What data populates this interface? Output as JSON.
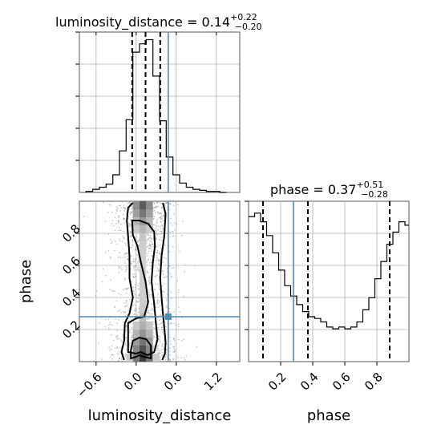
{
  "colors": {
    "truth": "#4c8cb5",
    "hist": "#000000",
    "contour": "#000000",
    "grid": "#b0b0b0",
    "scatter": "#9a9a9a"
  },
  "chart_data": {
    "type": "corner",
    "parameters": [
      "luminosity_distance",
      "phase"
    ],
    "titles": {
      "luminosity_distance": {
        "prefix": "luminosity_distance = ",
        "median": "0.14",
        "upper": "+0.22",
        "lower": "−0.20"
      },
      "phase": {
        "prefix": "phase = ",
        "median": "0.37",
        "upper": "+0.51",
        "lower": "−0.28"
      }
    },
    "axes": {
      "luminosity_distance": {
        "label": "luminosity_distance",
        "range": [
          -0.85,
          1.55
        ],
        "ticks": [
          -0.6,
          0.0,
          0.6,
          1.2
        ],
        "tick_labels": [
          "−0.6",
          "0.0",
          "0.6",
          "1.2"
        ]
      },
      "phase": {
        "label": "phase",
        "range": [
          0.0,
          1.0
        ],
        "ticks": [
          0.2,
          0.4,
          0.6,
          0.8
        ],
        "tick_labels": [
          "0.2",
          "0.4",
          "0.6",
          "0.8"
        ]
      }
    },
    "truths": {
      "luminosity_distance": 0.48,
      "phase": 0.28
    },
    "quantiles": {
      "luminosity_distance": [
        -0.06,
        0.14,
        0.36
      ],
      "phase": [
        0.09,
        0.37,
        0.88
      ]
    },
    "hist_luminosity_distance": {
      "edges": [
        -0.75,
        -0.65,
        -0.55,
        -0.45,
        -0.35,
        -0.25,
        -0.15,
        -0.05,
        0.05,
        0.15,
        0.25,
        0.35,
        0.45,
        0.55,
        0.65,
        0.75,
        0.85,
        0.95,
        1.05,
        1.15,
        1.25,
        1.35
      ],
      "counts": [
        1,
        3,
        5,
        8,
        17,
        40,
        70,
        135,
        143,
        147,
        112,
        69,
        34,
        17,
        9,
        5,
        3,
        2,
        1,
        1,
        0
      ]
    },
    "hist_phase": {
      "edges": [
        0.0,
        0.0375,
        0.075,
        0.1125,
        0.15,
        0.1875,
        0.225,
        0.2625,
        0.3,
        0.3375,
        0.375,
        0.4125,
        0.45,
        0.4875,
        0.525,
        0.5625,
        0.6,
        0.6375,
        0.675,
        0.7125,
        0.75,
        0.7875,
        0.825,
        0.8625,
        0.9,
        0.9375,
        0.975,
        1.0
      ],
      "counts": [
        84,
        86,
        81,
        73,
        63,
        53,
        44,
        38,
        33,
        29,
        26,
        25,
        23,
        20,
        19,
        20,
        19,
        20,
        23,
        30,
        37,
        48,
        58,
        68,
        75,
        81,
        79
      ]
    },
    "contours_2d": [
      {
        "level": "inner",
        "points": [
          [
            -0.08,
            0.02
          ],
          [
            -0.08,
            0.07
          ],
          [
            -0.05,
            0.13
          ],
          [
            0.05,
            0.15
          ],
          [
            0.15,
            0.14
          ],
          [
            0.22,
            0.1
          ],
          [
            0.22,
            0.02
          ],
          [
            0.12,
            0.03
          ],
          [
            0.05,
            0.04
          ],
          [
            0.0,
            0.03
          ]
        ]
      },
      {
        "level": "middle",
        "points": [
          [
            -0.12,
            0.06
          ],
          [
            -0.12,
            0.15
          ],
          [
            -0.12,
            0.24
          ],
          [
            0.0,
            0.27
          ],
          [
            0.12,
            0.28
          ],
          [
            0.18,
            0.37
          ],
          [
            0.14,
            0.5
          ],
          [
            0.07,
            0.62
          ],
          [
            0.02,
            0.72
          ],
          [
            -0.05,
            0.79
          ],
          [
            -0.06,
            0.88
          ],
          [
            0.05,
            0.88
          ],
          [
            0.18,
            0.86
          ],
          [
            0.27,
            0.81
          ],
          [
            0.28,
            0.72
          ],
          [
            0.25,
            0.62
          ],
          [
            0.23,
            0.5
          ],
          [
            0.27,
            0.36
          ],
          [
            0.3,
            0.22
          ],
          [
            0.32,
            0.14
          ],
          [
            0.27,
            0.06
          ],
          [
            0.17,
            0.04
          ],
          [
            0.07,
            0.06
          ],
          [
            0.0,
            0.05
          ]
        ]
      },
      {
        "level": "outer",
        "points": [
          [
            -0.18,
            0.01
          ],
          [
            -0.22,
            0.06
          ],
          [
            -0.18,
            0.13
          ],
          [
            -0.17,
            0.24
          ],
          [
            -0.1,
            0.3
          ],
          [
            -0.05,
            0.4
          ],
          [
            -0.1,
            0.52
          ],
          [
            -0.1,
            0.66
          ],
          [
            -0.12,
            0.78
          ],
          [
            -0.14,
            0.88
          ],
          [
            -0.12,
            0.96
          ],
          [
            -0.05,
            0.99
          ]
        ]
      },
      {
        "level": "outer",
        "points": [
          [
            0.4,
            0.99
          ],
          [
            0.44,
            0.92
          ],
          [
            0.42,
            0.78
          ],
          [
            0.38,
            0.66
          ],
          [
            0.36,
            0.52
          ],
          [
            0.38,
            0.4
          ],
          [
            0.4,
            0.3
          ],
          [
            0.42,
            0.22
          ],
          [
            0.44,
            0.12
          ],
          [
            0.43,
            0.05
          ],
          [
            0.39,
            0.01
          ]
        ]
      }
    ]
  }
}
